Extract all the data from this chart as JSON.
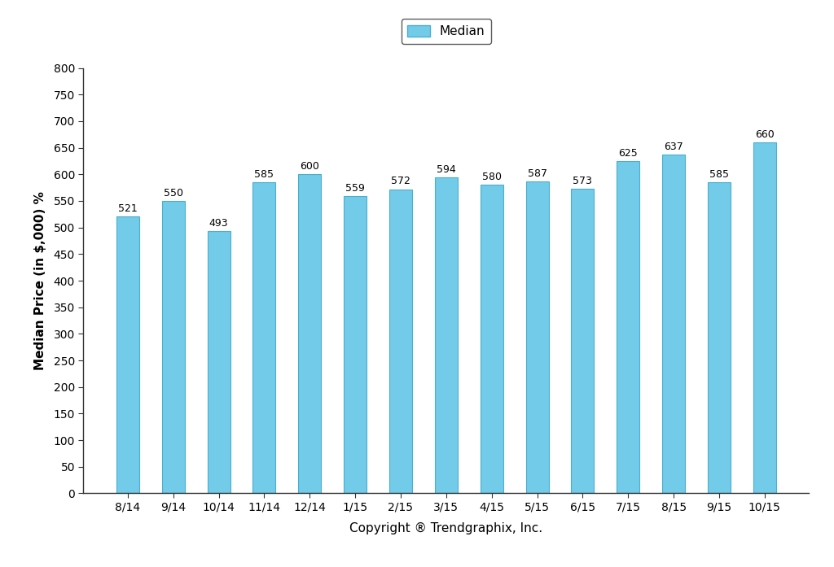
{
  "categories": [
    "8/14",
    "9/14",
    "10/14",
    "11/14",
    "12/14",
    "1/15",
    "2/15",
    "3/15",
    "4/15",
    "5/15",
    "6/15",
    "7/15",
    "8/15",
    "9/15",
    "10/15"
  ],
  "values": [
    521,
    550,
    493,
    585,
    600,
    559,
    572,
    594,
    580,
    587,
    573,
    625,
    637,
    585,
    660
  ],
  "bar_color": "#72CBE8",
  "bar_edge_color": "#4AAED0",
  "ylim": [
    0,
    800
  ],
  "yticks": [
    0,
    50,
    100,
    150,
    200,
    250,
    300,
    350,
    400,
    450,
    500,
    550,
    600,
    650,
    700,
    750,
    800
  ],
  "ylabel": "Median Price (in $,000) %",
  "xlabel": "Copyright ® Trendgraphix, Inc.",
  "legend_label": "Median",
  "legend_box_color": "#72CBE8",
  "legend_box_edge_color": "#4AAED0",
  "axis_label_fontsize": 11,
  "tick_label_fontsize": 10,
  "bar_label_fontsize": 9,
  "background_color": "#ffffff",
  "spine_color": "#333333"
}
